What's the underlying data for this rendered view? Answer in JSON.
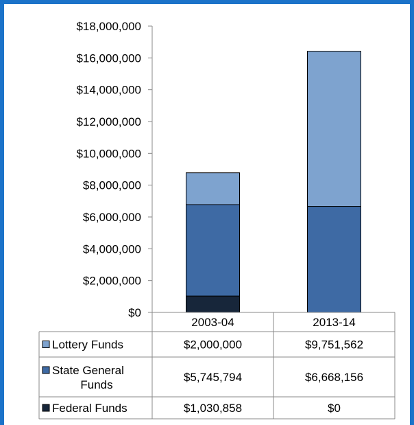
{
  "chart_data": {
    "type": "bar",
    "stacked": true,
    "categories": [
      "2003-04",
      "2013-14"
    ],
    "series": [
      {
        "name": "Federal Funds",
        "color": "#17263a",
        "values": [
          1030858,
          0
        ],
        "labels": [
          "$1,030,858",
          "$0"
        ]
      },
      {
        "name": "State General Funds",
        "color": "#3e6aa4",
        "values": [
          5745794,
          6668156
        ],
        "labels": [
          "$5,745,794",
          "$6,668,156"
        ]
      },
      {
        "name": "Lottery Funds",
        "color": "#7ea3cf",
        "values": [
          2000000,
          9751562
        ],
        "labels": [
          "$2,000,000",
          "$9,751,562"
        ]
      }
    ],
    "table_rows": [
      {
        "series": 2,
        "label_lines": [
          "Lottery Funds"
        ]
      },
      {
        "series": 1,
        "label_lines": [
          "State General",
          "Funds"
        ]
      },
      {
        "series": 0,
        "label_lines": [
          "Federal Funds"
        ]
      }
    ],
    "yticks": [
      0,
      2000000,
      4000000,
      6000000,
      8000000,
      10000000,
      12000000,
      14000000,
      16000000,
      18000000
    ],
    "ytick_labels": [
      "$0",
      "$2,000,000",
      "$4,000,000",
      "$6,000,000",
      "$8,000,000",
      "$10,000,000",
      "$12,000,000",
      "$14,000,000",
      "$16,000,000",
      "$18,000,000"
    ],
    "ylim": [
      0,
      18000000
    ],
    "grid": false,
    "legend": "data-table"
  }
}
